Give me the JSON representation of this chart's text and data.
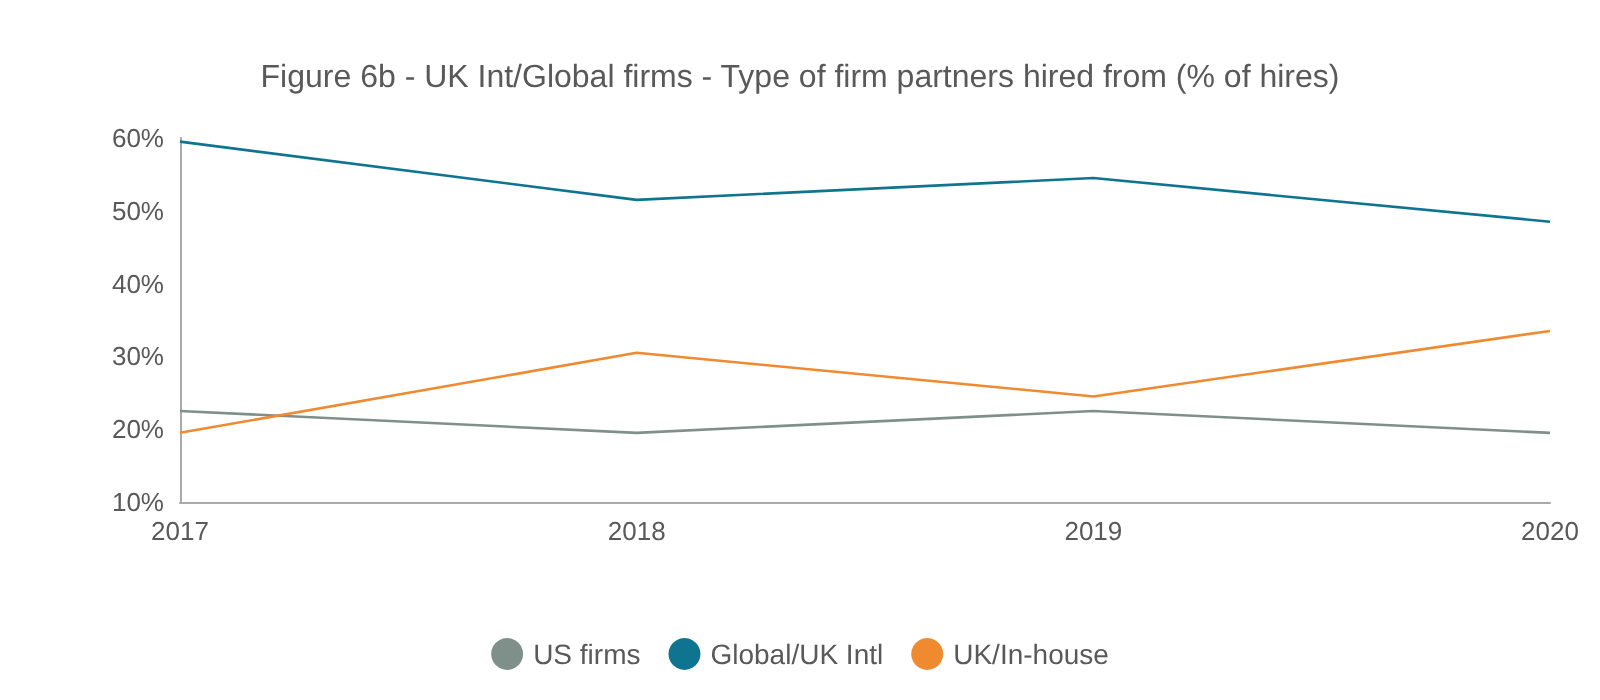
{
  "chart_data": {
    "type": "line",
    "title": "Figure 6b - UK Int/Global firms - Type of firm partners hired from (% of hires)",
    "categories": [
      "2017",
      "2018",
      "2019",
      "2020"
    ],
    "series": [
      {
        "name": "US firms",
        "color": "#7f8f8a",
        "values": [
          22.5,
          19.5,
          22.5,
          19.5
        ]
      },
      {
        "name": "Global/UK Intl",
        "color": "#0e7490",
        "values": [
          59.5,
          51.5,
          54.5,
          48.5
        ]
      },
      {
        "name": "UK/In-house",
        "color": "#f08a30",
        "values": [
          19.5,
          30.5,
          24.5,
          33.5
        ]
      }
    ],
    "ylim": [
      10,
      60
    ],
    "yticks": [
      {
        "value": 10,
        "label": "10%"
      },
      {
        "value": 20,
        "label": "20%"
      },
      {
        "value": 30,
        "label": "30%"
      },
      {
        "value": 40,
        "label": "40%"
      },
      {
        "value": 50,
        "label": "50%"
      },
      {
        "value": 60,
        "label": "60%"
      }
    ],
    "grid": false,
    "legend": "bottom",
    "marker": "none"
  }
}
